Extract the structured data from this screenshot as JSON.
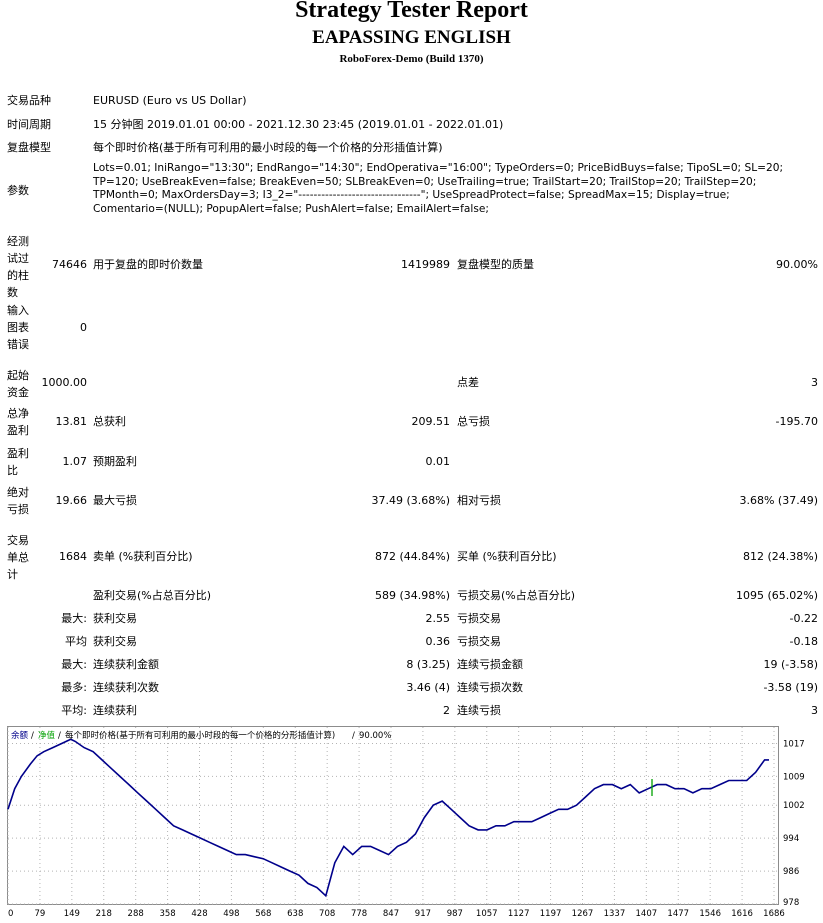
{
  "header": {
    "title": "Strategy Tester Report",
    "expert": "EAPASSING ENGLISH",
    "server": "RoboForex-Demo (Build 1370)"
  },
  "info": {
    "symbol_label": "交易品种",
    "symbol": "EURUSD (Euro vs US Dollar)",
    "period_label": "时间周期",
    "period": "15 分钟图 2019.01.01 00:00 - 2021.12.30 23:45 (2019.01.01 - 2022.01.01)",
    "model_label": "复盘模型",
    "model": "每个即时价格(基于所有可利用的最小时段的每一个价格的分形插值计算)",
    "params_label": "参数",
    "params": "Lots=0.01; IniRango=\"13:30\"; EndRango=\"14:30\"; EndOperativa=\"16:00\"; TypeOrders=0; PriceBidBuys=false; TipoSL=0; SL=20;\nTP=120; UseBreakEven=false; BreakEven=50; SLBreakEven=0; UseTrailing=true; TrailStart=20; TrailStop=20; TrailStep=20;\nTPMonth=0; MaxOrdersDay=3; I3_2=\"--------------------------------\"; UseSpreadProtect=false; SpreadMax=15; Display=true;\nComentario=(NULL); PopupAlert=false; PushAlert=false; EmailAlert=false;"
  },
  "stats": {
    "bars_label": "经测试过的柱数",
    "bars": "74646",
    "ticks_label": "用于复盘的即时价数量",
    "ticks": "1419989",
    "quality_label": "复盘模型的质量",
    "quality": "90.00%",
    "errors_label": "输入图表错误",
    "errors": "0",
    "deposit_label": "起始资金",
    "deposit": "1000.00",
    "spread_label": "点差",
    "spread": "3",
    "net_label": "总净盈利",
    "net": "13.81",
    "gross_profit_label": "总获利",
    "gross_profit": "209.51",
    "gross_loss_label": "总亏损",
    "gross_loss": "-195.70",
    "pf_label": "盈利比",
    "pf": "1.07",
    "payoff_label": "预期盈利",
    "payoff": "0.01",
    "abs_dd_label": "绝对亏损",
    "abs_dd": "19.66",
    "max_dd_label": "最大亏损",
    "max_dd": "37.49 (3.68%)",
    "rel_dd_label": "相对亏损",
    "rel_dd": "3.68% (37.49)",
    "trades_label": "交易单总计",
    "trades": "1684",
    "short_label": "卖单 (%获利百分比)",
    "short": "872 (44.84%)",
    "long_label": "买单 (%获利百分比)",
    "long": "812 (24.38%)",
    "win_label": "盈利交易(%占总百分比)",
    "win": "589 (34.98%)",
    "lose_label": "亏损交易(%占总百分比)",
    "lose": "1095 (65.02%)",
    "largest_prefix": "最大:",
    "largest_win_label": "获利交易",
    "largest_win": "2.55",
    "largest_loss_label": "亏损交易",
    "largest_loss": "-0.22",
    "avg_prefix": "平均",
    "avg_win_label": "获利交易",
    "avg_win": "0.36",
    "avg_loss_label": "亏损交易",
    "avg_loss": "-0.18",
    "max_prefix": "最大:",
    "max_cons_win_label": "连续获利金额",
    "max_cons_win": "8 (3.25)",
    "max_cons_loss_label": "连续亏损金额",
    "max_cons_loss": "19 (-3.58)",
    "maximal_prefix": "最多:",
    "maximal_cons_win_label": "连续获利次数",
    "maximal_cons_win": "3.46 (4)",
    "maximal_cons_loss_label": "连续亏损次数",
    "maximal_cons_loss": "-3.58 (19)",
    "avgc_prefix": "平均:",
    "avg_cons_win_label": "连续获利",
    "avg_cons_win": "2",
    "avg_cons_loss_label": "连续亏损",
    "avg_cons_loss": "3"
  },
  "chart_data": {
    "type": "line",
    "legend": {
      "balance": "余额",
      "sep1": "/",
      "equity": "净值",
      "sep2": "/",
      "model": "每个即时价格(基于所有可利用的最小时段的每一个价格的分形插值计算)",
      "sep3": "/",
      "quality": "90.00%"
    },
    "colors": {
      "balance": "#00008b",
      "equity": "#00a000",
      "grid": "#b4b4b4"
    },
    "xlim": [
      0,
      1720
    ],
    "ylim": [
      978,
      1021
    ],
    "x_ticks": [
      "0",
      "79",
      "149",
      "218",
      "288",
      "358",
      "428",
      "498",
      "568",
      "638",
      "708",
      "778",
      "847",
      "917",
      "987",
      "1057",
      "1127",
      "1197",
      "1267",
      "1337",
      "1407",
      "1477",
      "1546",
      "1616",
      "1686"
    ],
    "y_ticks": [
      1017,
      1009,
      1002,
      994,
      986,
      978
    ],
    "series": [
      {
        "x": [
          0,
          15,
          30,
          50,
          65,
          80,
          100,
          120,
          140,
          150,
          170,
          190,
          210,
          230,
          250,
          270,
          290,
          310,
          330,
          350,
          370,
          390,
          410,
          430,
          450,
          470,
          490,
          510,
          530,
          550,
          570,
          590,
          610,
          630,
          650,
          670,
          690,
          710,
          730,
          750,
          770,
          790,
          810,
          830,
          850,
          870,
          890,
          910,
          930,
          950,
          970,
          990,
          1010,
          1030,
          1050,
          1070,
          1090,
          1110,
          1130,
          1150,
          1170,
          1190,
          1210,
          1230,
          1250,
          1270,
          1290,
          1310,
          1330,
          1350,
          1370,
          1390,
          1410,
          1430,
          1450,
          1470,
          1490,
          1510,
          1530,
          1550,
          1570,
          1590,
          1610,
          1630,
          1650,
          1670,
          1690,
          1700
        ],
        "values": [
          1001,
          1006,
          1009,
          1012,
          1014,
          1015,
          1016,
          1017,
          1018,
          1017.5,
          1016,
          1015,
          1013,
          1011,
          1009,
          1007,
          1005,
          1003,
          1001,
          999,
          997,
          996,
          995,
          994,
          993,
          992,
          991,
          990,
          990,
          989.5,
          989,
          988,
          987,
          986,
          985,
          983,
          982,
          980,
          988,
          992,
          990,
          992,
          992,
          991,
          990,
          992,
          993,
          995,
          999,
          1002,
          1003,
          1001,
          999,
          997,
          996,
          996,
          997,
          997,
          998,
          998,
          998,
          999,
          1000,
          1001,
          1001,
          1002,
          1004,
          1006,
          1007,
          1007,
          1006,
          1007,
          1005,
          1006,
          1007,
          1007,
          1006,
          1006,
          1005,
          1006,
          1006,
          1007,
          1008,
          1008,
          1008,
          1010,
          1013,
          1013
        ]
      }
    ]
  }
}
